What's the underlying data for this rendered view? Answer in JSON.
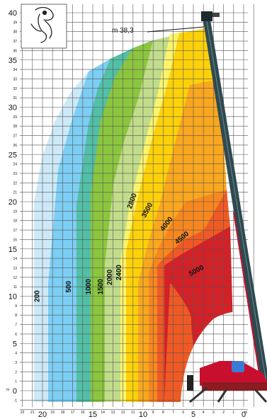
{
  "max_height_label": "m 38,3",
  "y_unit": "m",
  "x_unit": "m",
  "chart_data": {
    "type": "load-chart",
    "x": {
      "min": -1,
      "max": 22,
      "ticks": [
        22,
        21,
        20,
        19,
        18,
        17,
        16,
        15,
        14,
        13,
        12,
        11,
        10,
        9,
        8,
        7,
        6,
        5,
        4,
        3,
        2,
        1,
        0
      ],
      "major": [
        20,
        15,
        10,
        5,
        0
      ]
    },
    "y": {
      "min": -2,
      "max": 40,
      "ticks": [
        -1,
        0,
        1,
        2,
        3,
        4,
        5,
        6,
        7,
        8,
        9,
        10,
        11,
        12,
        13,
        14,
        15,
        16,
        17,
        18,
        19,
        20,
        21,
        22,
        23,
        24,
        25,
        26,
        27,
        28,
        29,
        30,
        31,
        32,
        33,
        34,
        35,
        36,
        37,
        38,
        39,
        40
      ],
      "major": [
        0,
        5,
        10,
        15,
        20,
        25,
        30,
        35,
        40
      ]
    },
    "max_height": 38.3,
    "zones": [
      {
        "load": "200",
        "color": "#cde9f7",
        "label_at": [
          20.3,
          10
        ]
      },
      {
        "load": "500",
        "color": "#7dcef4",
        "label_at": [
          17.2,
          11
        ]
      },
      {
        "load": "1000",
        "color": "#52bfa6",
        "label_at": [
          15.2,
          11
        ]
      },
      {
        "load": "1500",
        "color": "#8cc63f",
        "label_at": [
          14.0,
          11
        ]
      },
      {
        "load": "2000",
        "color": "#c1dc8b",
        "label_at": [
          13.1,
          12
        ]
      },
      {
        "load": "2400",
        "color": "#fbf36c",
        "label_at": [
          12.2,
          12.5
        ]
      },
      {
        "load": "2800",
        "color": "#fdd10a",
        "label_at": [
          10.9,
          20
        ]
      },
      {
        "load": "3500",
        "color": "#f9a71f",
        "label_at": [
          9.4,
          19
        ]
      },
      {
        "load": "4000",
        "color": "#f6871f",
        "label_at": [
          7.5,
          17.5
        ]
      },
      {
        "load": "4500",
        "color": "#ef5a24",
        "label_at": [
          6.0,
          16
        ]
      },
      {
        "load": "5000",
        "color": "#d42027",
        "label_at": [
          4.6,
          12.5
        ]
      }
    ]
  }
}
